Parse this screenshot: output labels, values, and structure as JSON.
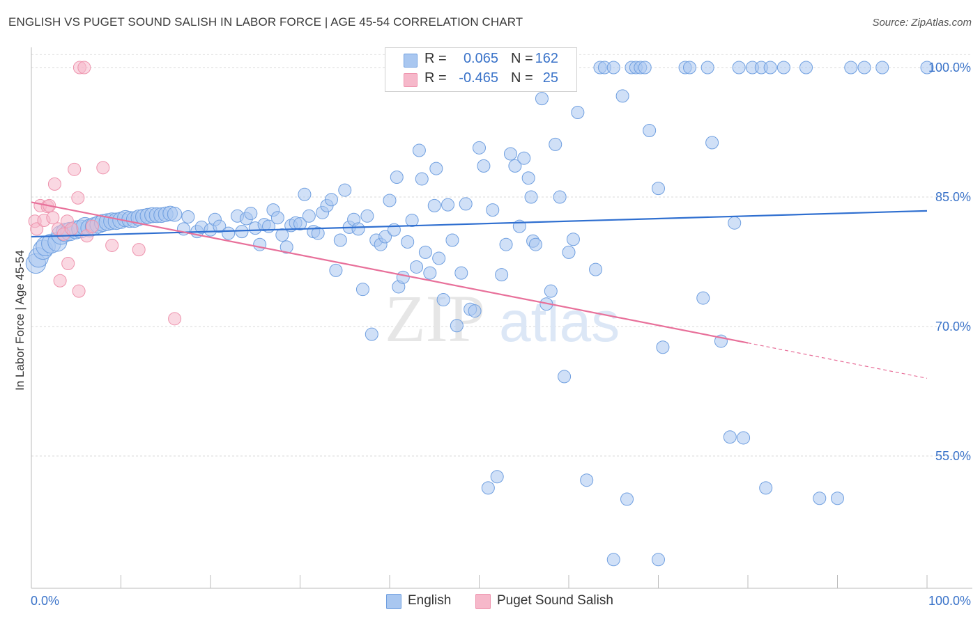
{
  "title": "ENGLISH VS PUGET SOUND SALISH IN LABOR FORCE | AGE 45-54 CORRELATION CHART",
  "source": "Source: ZipAtlas.com",
  "watermark": {
    "zip": "ZIP",
    "atlas": "atlas"
  },
  "stats": [
    {
      "r_label": "R =",
      "r_value": "0.065",
      "n_label": "N =",
      "n_value": "162",
      "color": "#a9c7f0"
    },
    {
      "r_label": "R =",
      "r_value": "-0.465",
      "n_label": "N =",
      "n_value": "25",
      "color": "#f6b8ca"
    }
  ],
  "legend": [
    {
      "label": "English",
      "color": "#a9c7f0"
    },
    {
      "label": "Puget Sound Salish",
      "color": "#f6b8ca"
    }
  ],
  "chart_data": {
    "type": "scatter",
    "title": "ENGLISH VS PUGET SOUND SALISH IN LABOR FORCE | AGE 45-54 CORRELATION CHART",
    "xlabel": "",
    "ylabel": "In Labor Force | Age 45-54",
    "xlim": [
      0,
      100
    ],
    "ylim": [
      39.5,
      101.5
    ],
    "x_tick_labels": [
      "0.0%",
      "100.0%"
    ],
    "y_ticks": [
      55,
      70,
      85,
      100
    ],
    "y_tick_labels": [
      "55.0%",
      "70.0%",
      "85.0%",
      "100.0%"
    ],
    "grid": "horizontal dashed",
    "legend_placement": "bottom-center",
    "series": [
      {
        "name": "English",
        "color": "#6f9fe0",
        "fill": "#a9c7f0",
        "trend": {
          "x": [
            0,
            100
          ],
          "y": [
            80.4,
            83.4
          ]
        },
        "points": [
          [
            0.5,
            77.3
          ],
          [
            0.8,
            78.0
          ],
          [
            1.3,
            78.9
          ],
          [
            1.6,
            79.3
          ],
          [
            2.2,
            79.6
          ],
          [
            2.9,
            79.8
          ],
          [
            3.3,
            80.6
          ],
          [
            3.8,
            80.9
          ],
          [
            4.3,
            81.0
          ],
          [
            5.0,
            81.2
          ],
          [
            5.5,
            81.3
          ],
          [
            6.0,
            81.6
          ],
          [
            6.5,
            81.4
          ],
          [
            7.0,
            81.6
          ],
          [
            7.5,
            81.8
          ],
          [
            8.0,
            82.0
          ],
          [
            8.5,
            82.1
          ],
          [
            9.0,
            82.2
          ],
          [
            9.5,
            82.2
          ],
          [
            10.0,
            82.3
          ],
          [
            10.5,
            82.5
          ],
          [
            11.0,
            82.4
          ],
          [
            11.5,
            82.4
          ],
          [
            12.0,
            82.6
          ],
          [
            12.5,
            82.7
          ],
          [
            13.0,
            82.8
          ],
          [
            13.5,
            82.9
          ],
          [
            14.0,
            82.9
          ],
          [
            14.5,
            82.9
          ],
          [
            15.0,
            83.0
          ],
          [
            15.5,
            83.1
          ],
          [
            16.0,
            83.0
          ],
          [
            17.0,
            81.3
          ],
          [
            17.5,
            82.7
          ],
          [
            18.5,
            81.0
          ],
          [
            19.0,
            81.5
          ],
          [
            20.0,
            81.2
          ],
          [
            20.5,
            82.4
          ],
          [
            21.0,
            81.6
          ],
          [
            22.0,
            80.8
          ],
          [
            23.0,
            82.8
          ],
          [
            23.5,
            81.0
          ],
          [
            24.0,
            82.5
          ],
          [
            24.5,
            83.1
          ],
          [
            25.0,
            81.4
          ],
          [
            25.5,
            79.5
          ],
          [
            26.0,
            81.8
          ],
          [
            26.5,
            81.6
          ],
          [
            27.0,
            83.5
          ],
          [
            27.5,
            82.6
          ],
          [
            28.0,
            80.6
          ],
          [
            28.5,
            79.2
          ],
          [
            29.0,
            81.7
          ],
          [
            29.5,
            82.0
          ],
          [
            30.0,
            81.9
          ],
          [
            30.5,
            85.3
          ],
          [
            31.0,
            82.8
          ],
          [
            31.5,
            81.0
          ],
          [
            32.0,
            80.8
          ],
          [
            32.5,
            83.2
          ],
          [
            33.0,
            84.0
          ],
          [
            33.5,
            84.7
          ],
          [
            34.0,
            76.5
          ],
          [
            34.5,
            80.0
          ],
          [
            35.0,
            85.8
          ],
          [
            35.5,
            81.5
          ],
          [
            36.0,
            82.4
          ],
          [
            36.5,
            81.3
          ],
          [
            37.0,
            74.3
          ],
          [
            37.5,
            82.8
          ],
          [
            38.0,
            69.1
          ],
          [
            38.5,
            80.0
          ],
          [
            39.0,
            79.5
          ],
          [
            39.5,
            80.4
          ],
          [
            40.0,
            84.6
          ],
          [
            40.5,
            81.2
          ],
          [
            40.8,
            87.3
          ],
          [
            41.0,
            74.6
          ],
          [
            41.5,
            75.7
          ],
          [
            42.0,
            79.8
          ],
          [
            42.5,
            82.3
          ],
          [
            43.0,
            76.9
          ],
          [
            43.3,
            90.4
          ],
          [
            43.6,
            87.1
          ],
          [
            44.0,
            78.6
          ],
          [
            44.5,
            76.2
          ],
          [
            45.0,
            84.0
          ],
          [
            45.2,
            88.3
          ],
          [
            45.5,
            77.9
          ],
          [
            46.0,
            73.1
          ],
          [
            46.5,
            84.1
          ],
          [
            47.0,
            80.0
          ],
          [
            47.5,
            70.1
          ],
          [
            48.0,
            76.2
          ],
          [
            48.5,
            84.2
          ],
          [
            49.0,
            72.0
          ],
          [
            49.5,
            71.8
          ],
          [
            50.0,
            90.7
          ],
          [
            50.5,
            88.6
          ],
          [
            51.0,
            51.3
          ],
          [
            51.5,
            83.5
          ],
          [
            52.0,
            52.6
          ],
          [
            52.5,
            76.0
          ],
          [
            53.0,
            79.5
          ],
          [
            53.5,
            90.0
          ],
          [
            54.0,
            88.6
          ],
          [
            54.5,
            81.6
          ],
          [
            55.0,
            89.5
          ],
          [
            55.5,
            87.2
          ],
          [
            55.8,
            85.0
          ],
          [
            56.0,
            79.9
          ],
          [
            56.3,
            79.5
          ],
          [
            57.0,
            96.4
          ],
          [
            57.5,
            72.6
          ],
          [
            58.0,
            74.1
          ],
          [
            58.5,
            91.1
          ],
          [
            59.0,
            85.0
          ],
          [
            59.5,
            64.2
          ],
          [
            60.0,
            78.6
          ],
          [
            60.5,
            80.1
          ],
          [
            61.0,
            94.8
          ],
          [
            62.0,
            52.2
          ],
          [
            63.0,
            76.6
          ],
          [
            63.5,
            100.0
          ],
          [
            64.0,
            100.0
          ],
          [
            65.0,
            100.0
          ],
          [
            66.0,
            96.7
          ],
          [
            66.5,
            50.0
          ],
          [
            67.0,
            100.0
          ],
          [
            67.5,
            100.0
          ],
          [
            68.0,
            100.0
          ],
          [
            68.5,
            100.0
          ],
          [
            69.0,
            92.7
          ],
          [
            70.0,
            86.0
          ],
          [
            70.5,
            67.6
          ],
          [
            73.0,
            100.0
          ],
          [
            73.5,
            100.0
          ],
          [
            75.0,
            73.3
          ],
          [
            75.5,
            100.0
          ],
          [
            76.0,
            91.3
          ],
          [
            77.0,
            68.3
          ],
          [
            78.0,
            57.2
          ],
          [
            78.5,
            82.0
          ],
          [
            79.0,
            100.0
          ],
          [
            79.5,
            57.1
          ],
          [
            80.5,
            100.0
          ],
          [
            81.5,
            100.0
          ],
          [
            82.0,
            51.3
          ],
          [
            82.5,
            100.0
          ],
          [
            84.0,
            100.0
          ],
          [
            86.5,
            100.0
          ],
          [
            88.0,
            50.1
          ],
          [
            90.0,
            50.1
          ],
          [
            91.5,
            100.0
          ],
          [
            93.0,
            100.0
          ],
          [
            95.0,
            100.0
          ],
          [
            100.0,
            100.0
          ],
          [
            65.0,
            43.0
          ],
          [
            70.0,
            43.0
          ],
          [
            60.0,
            100.0
          ]
        ]
      },
      {
        "name": "Puget Sound Salish",
        "color": "#ee93ad",
        "fill": "#f6b8ca",
        "trend": {
          "x": [
            0,
            80
          ],
          "y": [
            84.4,
            68.1
          ],
          "dashed_to": [
            100,
            64.0
          ]
        },
        "points": [
          [
            0.4,
            82.2
          ],
          [
            0.6,
            81.3
          ],
          [
            1.0,
            84.0
          ],
          [
            1.4,
            82.3
          ],
          [
            1.8,
            83.9
          ],
          [
            2.0,
            84.0
          ],
          [
            2.4,
            82.6
          ],
          [
            2.6,
            86.5
          ],
          [
            3.0,
            81.3
          ],
          [
            3.2,
            75.3
          ],
          [
            3.6,
            80.7
          ],
          [
            4.0,
            82.2
          ],
          [
            4.1,
            77.3
          ],
          [
            4.5,
            81.3
          ],
          [
            4.8,
            88.2
          ],
          [
            5.2,
            84.9
          ],
          [
            5.3,
            74.1
          ],
          [
            5.4,
            100.0
          ],
          [
            5.9,
            100.0
          ],
          [
            6.2,
            80.5
          ],
          [
            6.8,
            81.6
          ],
          [
            8.0,
            88.4
          ],
          [
            9.0,
            79.4
          ],
          [
            12.0,
            78.9
          ],
          [
            16.0,
            70.9
          ]
        ]
      }
    ]
  }
}
